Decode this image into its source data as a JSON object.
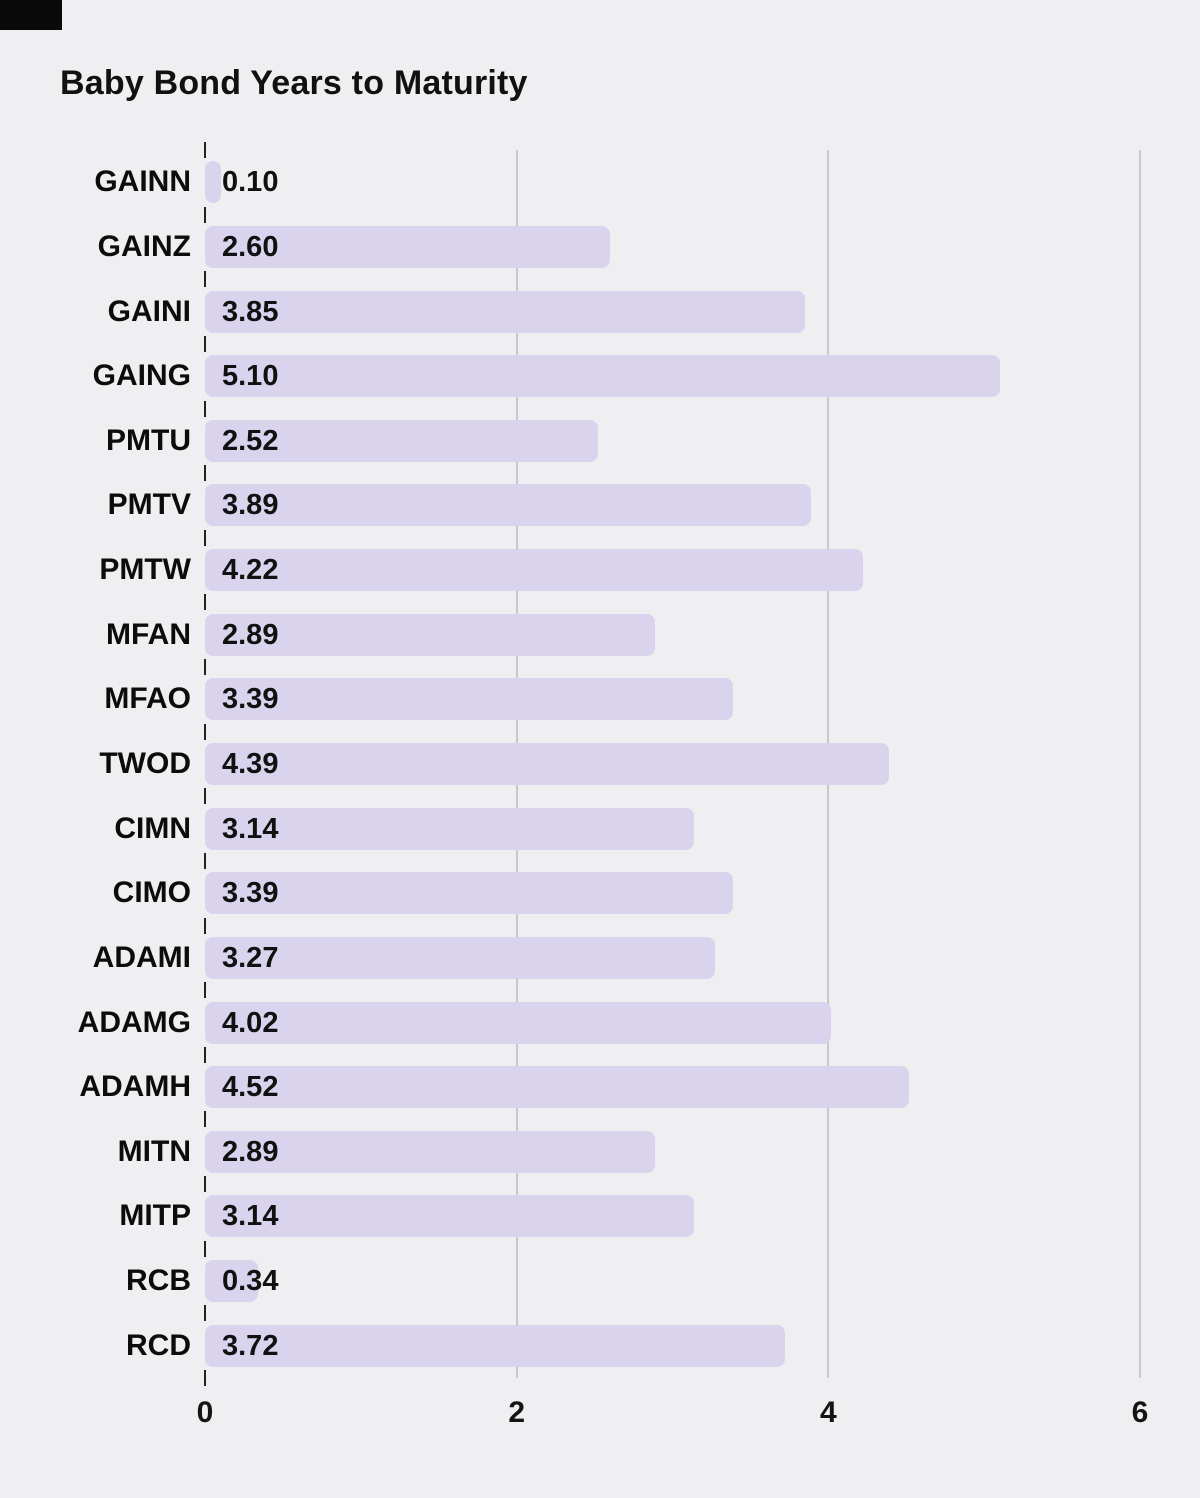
{
  "title": "Baby Bond Years to Maturity",
  "colors": {
    "background": "#efeef0",
    "bar": "#d9d3ee",
    "gridline": "#c9c8cc",
    "text": "#111111"
  },
  "chart_data": {
    "type": "bar",
    "orientation": "horizontal",
    "title": "Baby Bond Years to Maturity",
    "categories": [
      "GAINN",
      "GAINZ",
      "GAINI",
      "GAING",
      "PMTU",
      "PMTV",
      "PMTW",
      "MFAN",
      "MFAO",
      "TWOD",
      "CIMN",
      "CIMO",
      "ADAMI",
      "ADAMG",
      "ADAMH",
      "MITN",
      "MITP",
      "RCB",
      "RCD"
    ],
    "values": [
      0.1,
      2.6,
      3.85,
      5.1,
      2.52,
      3.89,
      4.22,
      2.89,
      3.39,
      4.39,
      3.14,
      3.39,
      3.27,
      4.02,
      4.52,
      2.89,
      3.14,
      0.34,
      3.72
    ],
    "value_labels": [
      "0.10",
      "2.60",
      "3.85",
      "5.10",
      "2.52",
      "3.89",
      "4.22",
      "2.89",
      "3.39",
      "4.39",
      "3.14",
      "3.39",
      "3.27",
      "4.02",
      "4.52",
      "2.89",
      "3.14",
      "0.34",
      "3.72"
    ],
    "xlabel": "",
    "ylabel": "",
    "xlim": [
      0,
      6
    ],
    "x_ticks": [
      0,
      2,
      4,
      6
    ],
    "x_tick_labels": [
      "0",
      "2",
      "4",
      "6"
    ],
    "grid": "vertical gridlines at 2, 4, 6",
    "legend": "none"
  }
}
